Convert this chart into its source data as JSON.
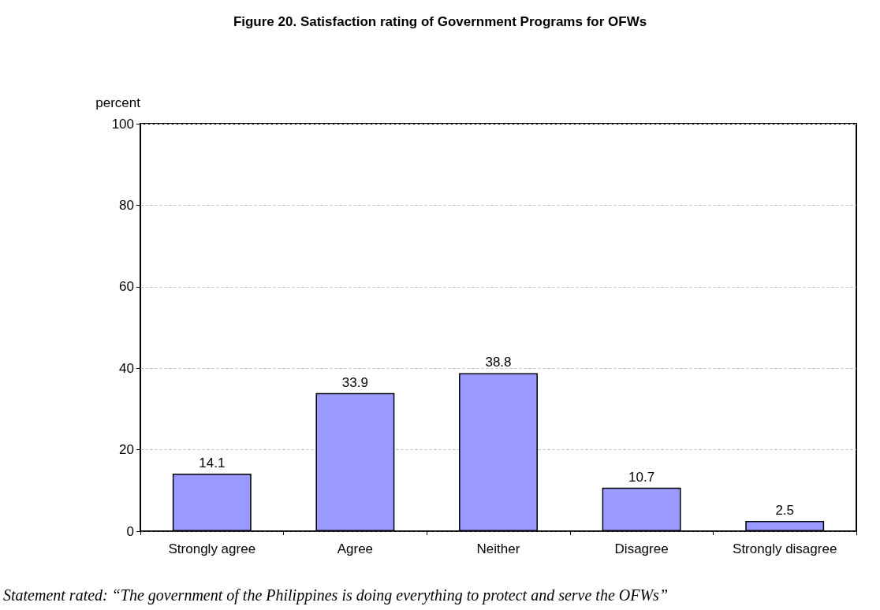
{
  "chart_data": {
    "type": "bar",
    "title": "Figure 20. Satisfaction rating of Government Programs for OFWs",
    "ylabel": "percent",
    "categories": [
      "Strongly agree",
      "Agree",
      "Neither",
      "Disagree",
      "Strongly disagree"
    ],
    "values": [
      14.1,
      33.9,
      38.8,
      10.7,
      2.5
    ],
    "color": "#9999ff",
    "ylim": [
      0,
      100
    ],
    "yticks": [
      0,
      20,
      40,
      60,
      80,
      100
    ],
    "grid": "y",
    "data_labels": true,
    "annotations": [
      "Statement rated: “The government of the Philippines is doing everything to protect and serve the OFWs”"
    ]
  }
}
